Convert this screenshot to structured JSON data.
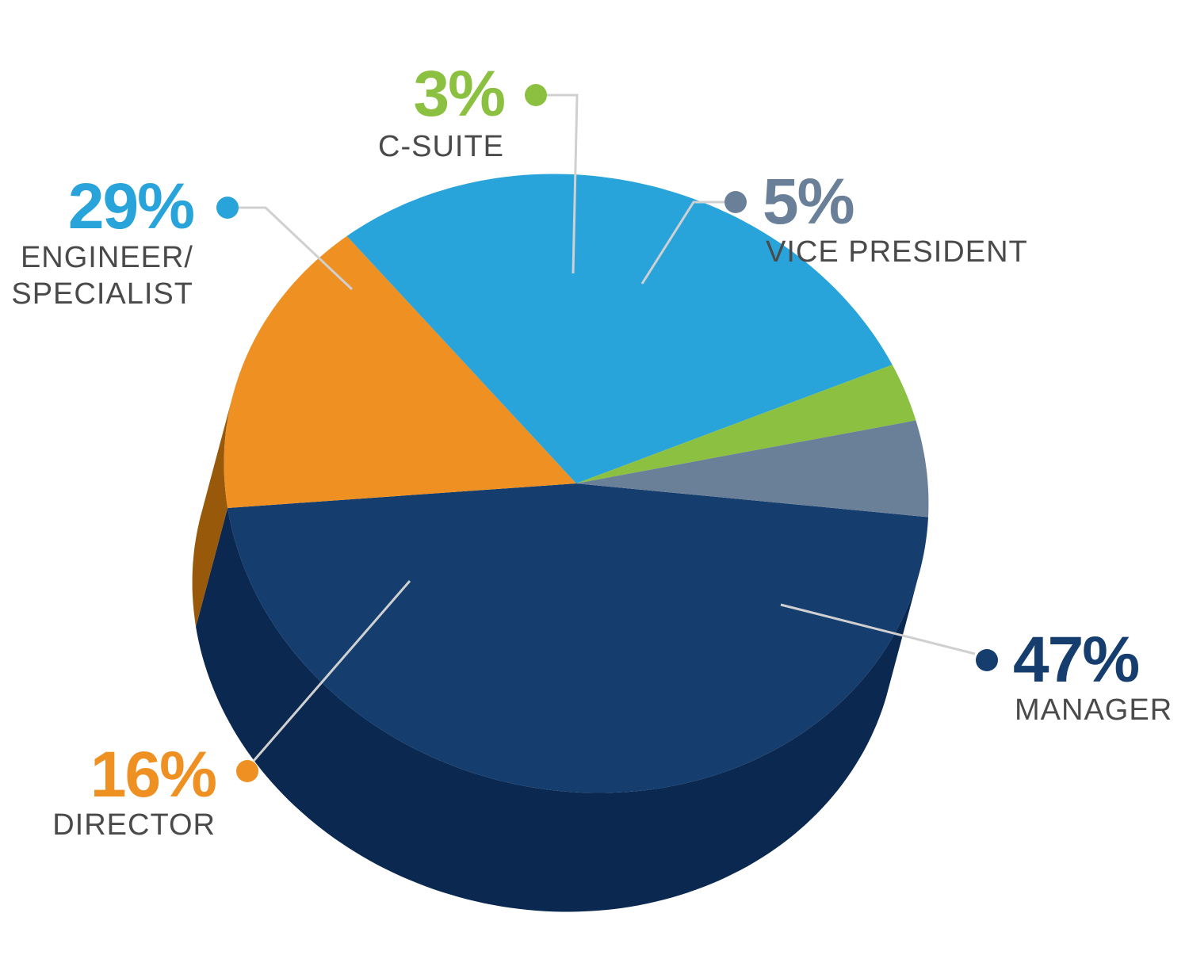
{
  "chart_data": {
    "type": "pie",
    "style": "3d-tilted",
    "slices": [
      {
        "label": "MANAGER",
        "value": 47,
        "display": "47%",
        "color": "#153d6e",
        "side_color": "#0a2850"
      },
      {
        "label": "DIRECTOR",
        "value": 16,
        "display": "16%",
        "color": "#ee9022",
        "side_color": "#98590a"
      },
      {
        "label": "ENGINEER/\nSPECIALIST",
        "label_lines": [
          "ENGINEER/",
          "SPECIALIST"
        ],
        "value": 29,
        "display": "29%",
        "color": "#28a4db",
        "side_color": "#16668a"
      },
      {
        "label": "C-SUITE",
        "value": 3,
        "display": "3%",
        "color": "#8bc040",
        "side_color": "#5f8a24"
      },
      {
        "label": "VICE PRESIDENT",
        "value": 5,
        "display": "5%",
        "color": "#6a8099",
        "side_color": "#47596e"
      }
    ],
    "leader_line_color": "#d0d0d0",
    "label_text_color": "#4a4a4a"
  }
}
